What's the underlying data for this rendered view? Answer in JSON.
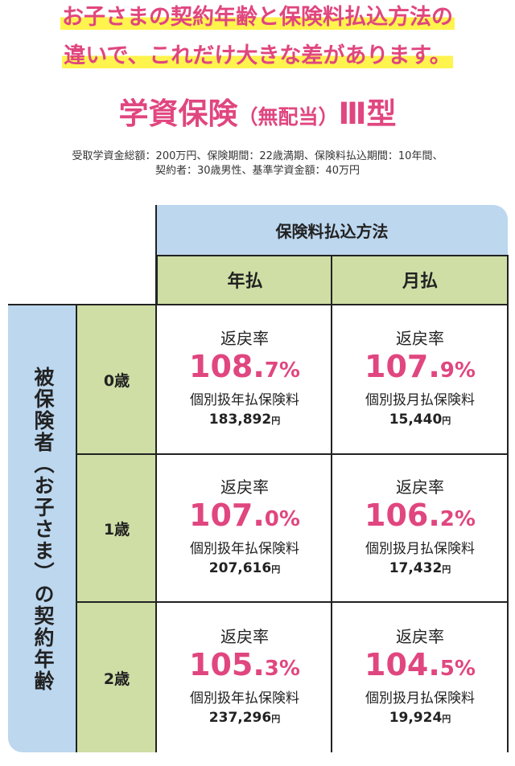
{
  "headline": {
    "line1": "お子さまの契約年齢と保険料払込方法の",
    "line2": "違いで、これだけ大きな差があります。"
  },
  "product": {
    "name": "学資保険",
    "paren": "（無配当）",
    "type": "Ⅲ型"
  },
  "conditions": {
    "line1": "受取学資金総額：200万円、保険期間：22歳満期、保険料払込期間：10年間、",
    "line2": "契約者：30歳男性、基準学資金額：40万円"
  },
  "table": {
    "method_header": "保険料払込方法",
    "col_annual": "年払",
    "col_monthly": "月払",
    "row_label": "被保険者（お子さま）の契約年齢",
    "return_label": "返戻率",
    "yen": "円",
    "rows": [
      {
        "age": "0歳",
        "annual": {
          "rate_main": "108.",
          "rate_dec": "7%",
          "premium_label": "個別扱年払保険料",
          "amount": "183,892"
        },
        "monthly": {
          "rate_main": "107.",
          "rate_dec": "9%",
          "premium_label": "個別扱月払保険料",
          "amount": "15,440"
        }
      },
      {
        "age": "1歳",
        "annual": {
          "rate_main": "107.",
          "rate_dec": "0%",
          "premium_label": "個別扱年払保険料",
          "amount": "207,616"
        },
        "monthly": {
          "rate_main": "106.",
          "rate_dec": "2%",
          "premium_label": "個別扱月払保険料",
          "amount": "17,432"
        }
      },
      {
        "age": "2歳",
        "annual": {
          "rate_main": "105.",
          "rate_dec": "3%",
          "premium_label": "個別扱年払保険料",
          "amount": "237,296"
        },
        "monthly": {
          "rate_main": "104.",
          "rate_dec": "5%",
          "premium_label": "個別扱月払保険料",
          "amount": "19,924"
        }
      }
    ]
  },
  "colors": {
    "accent_pink": "#e0467f",
    "highlight_yellow": "#fff34d",
    "header_blue": "#bcd7ee",
    "header_green": "#cfdea5"
  }
}
